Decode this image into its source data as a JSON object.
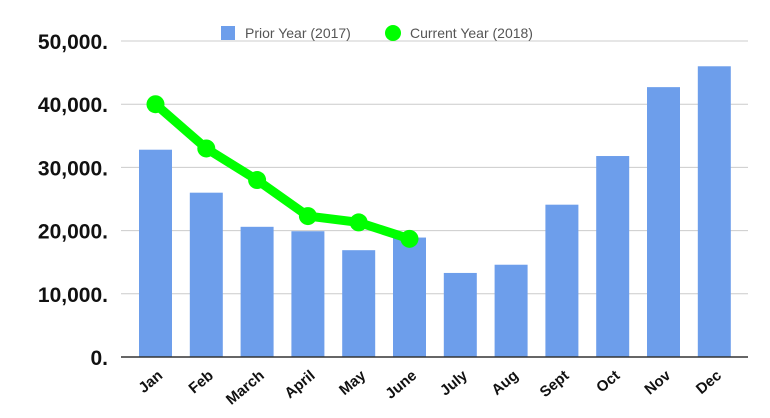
{
  "chart_data": {
    "type": "bar",
    "categories": [
      "Jan",
      "Feb",
      "March",
      "April",
      "May",
      "June",
      "July",
      "Aug",
      "Sept",
      "Oct",
      "Nov",
      "Dec"
    ],
    "series": [
      {
        "name": "Prior Year (2017)",
        "type": "bar",
        "color": "#6d9eeb",
        "values": [
          32800,
          26000,
          20600,
          19900,
          16900,
          18900,
          13300,
          14600,
          24100,
          31800,
          42700,
          46000
        ]
      },
      {
        "name": "Current Year (2018)",
        "type": "line",
        "color": "#00ff00",
        "values": [
          40000,
          33000,
          28000,
          22300,
          21300,
          18700,
          null,
          null,
          null,
          null,
          null,
          null
        ]
      }
    ],
    "yticks": [
      "0.",
      "10,000.",
      "20,000.",
      "30,000.",
      "40,000.",
      "50,000."
    ],
    "ylim": [
      0,
      50000
    ],
    "grid": true,
    "legend_position": "top"
  }
}
